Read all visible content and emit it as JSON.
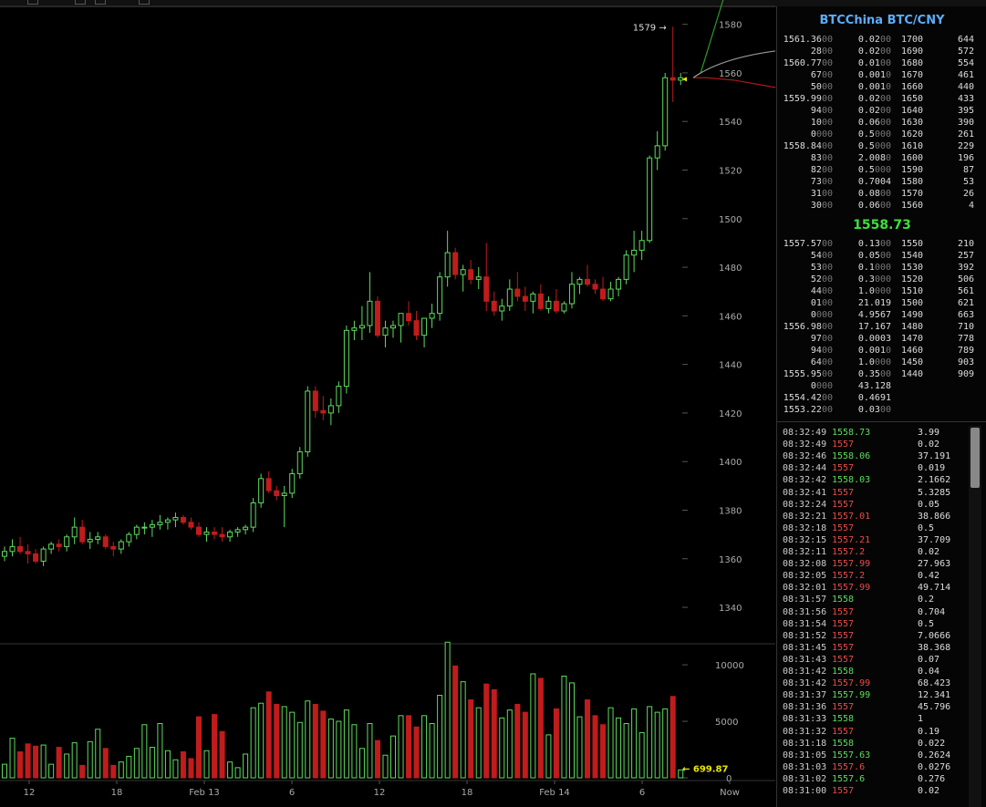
{
  "colors": {
    "up": "#5ddc5d",
    "down": "#c01c1c",
    "mid": "#3de03d",
    "title": "#5aaefc",
    "marker": "#e8e800",
    "grid_text": "#aaaaaa"
  },
  "book": {
    "title": "BTCChina BTC/CNY",
    "mid_price": "1558.73",
    "asks": [
      {
        "price": "1561.36",
        "price_dim": "00",
        "amount": "0.02",
        "amount_dim": "00",
        "level": "1700",
        "cum": "644"
      },
      {
        "price": "28",
        "price_dim": "00",
        "amount": "0.02",
        "amount_dim": "00",
        "level": "1690",
        "cum": "572"
      },
      {
        "price": "1560.77",
        "price_dim": "00",
        "amount": "0.01",
        "amount_dim": "00",
        "level": "1680",
        "cum": "554"
      },
      {
        "price": "67",
        "price_dim": "00",
        "amount": "0.001",
        "amount_dim": "0",
        "level": "1670",
        "cum": "461"
      },
      {
        "price": "50",
        "price_dim": "00",
        "amount": "0.001",
        "amount_dim": "0",
        "level": "1660",
        "cum": "440"
      },
      {
        "price": "1559.99",
        "price_dim": "00",
        "amount": "0.02",
        "amount_dim": "00",
        "level": "1650",
        "cum": "433"
      },
      {
        "price": "94",
        "price_dim": "00",
        "amount": "0.02",
        "amount_dim": "00",
        "level": "1640",
        "cum": "395"
      },
      {
        "price": "10",
        "price_dim": "00",
        "amount": "0.06",
        "amount_dim": "00",
        "level": "1630",
        "cum": "390"
      },
      {
        "price": "0",
        "price_dim": "000",
        "amount": "0.5",
        "amount_dim": "000",
        "level": "1620",
        "cum": "261"
      },
      {
        "price": "1558.84",
        "price_dim": "00",
        "amount": "0.5",
        "amount_dim": "000",
        "level": "1610",
        "cum": "229"
      },
      {
        "price": "83",
        "price_dim": "00",
        "amount": "2.008",
        "amount_dim": "0",
        "level": "1600",
        "cum": "196"
      },
      {
        "price": "82",
        "price_dim": "00",
        "amount": "0.5",
        "amount_dim": "000",
        "level": "1590",
        "cum": "87"
      },
      {
        "price": "73",
        "price_dim": "00",
        "amount": "0.7004",
        "amount_dim": "",
        "level": "1580",
        "cum": "53"
      },
      {
        "price": "31",
        "price_dim": "00",
        "amount": "0.08",
        "amount_dim": "00",
        "level": "1570",
        "cum": "26"
      },
      {
        "price": "30",
        "price_dim": "00",
        "amount": "0.06",
        "amount_dim": "00",
        "level": "1560",
        "cum": "4"
      }
    ],
    "bids": [
      {
        "price": "1557.57",
        "price_dim": "00",
        "amount": "0.13",
        "amount_dim": "00",
        "level": "1550",
        "cum": "210"
      },
      {
        "price": "54",
        "price_dim": "00",
        "amount": "0.05",
        "amount_dim": "00",
        "level": "1540",
        "cum": "257"
      },
      {
        "price": "53",
        "price_dim": "00",
        "amount": "0.1",
        "amount_dim": "000",
        "level": "1530",
        "cum": "392"
      },
      {
        "price": "52",
        "price_dim": "00",
        "amount": "0.3",
        "amount_dim": "000",
        "level": "1520",
        "cum": "506"
      },
      {
        "price": "44",
        "price_dim": "00",
        "amount": "1.0",
        "amount_dim": "000",
        "level": "1510",
        "cum": "561"
      },
      {
        "price": "01",
        "price_dim": "00",
        "amount": "21.019",
        "amount_dim": "",
        "level": "1500",
        "cum": "621"
      },
      {
        "price": "0",
        "price_dim": "000",
        "amount": "4.9567",
        "amount_dim": "",
        "level": "1490",
        "cum": "663"
      },
      {
        "price": "1556.98",
        "price_dim": "00",
        "amount": "17.167",
        "amount_dim": "",
        "level": "1480",
        "cum": "710"
      },
      {
        "price": "97",
        "price_dim": "00",
        "amount": "0.0003",
        "amount_dim": "",
        "level": "1470",
        "cum": "778"
      },
      {
        "price": "94",
        "price_dim": "00",
        "amount": "0.001",
        "amount_dim": "0",
        "level": "1460",
        "cum": "789"
      },
      {
        "price": "64",
        "price_dim": "00",
        "amount": "1.0",
        "amount_dim": "000",
        "level": "1450",
        "cum": "903"
      },
      {
        "price": "1555.95",
        "price_dim": "00",
        "amount": "0.35",
        "amount_dim": "00",
        "level": "1440",
        "cum": "909"
      },
      {
        "price": "0",
        "price_dim": "000",
        "amount": "43.128",
        "amount_dim": "",
        "level": "",
        "cum": ""
      },
      {
        "price": "1554.42",
        "price_dim": "00",
        "amount": "0.4691",
        "amount_dim": "",
        "level": "",
        "cum": ""
      },
      {
        "price": "1553.22",
        "price_dim": "00",
        "amount": "0.03",
        "amount_dim": "00",
        "level": "",
        "cum": ""
      }
    ]
  },
  "trades": [
    {
      "time": "08:32:49",
      "price": "1558.73",
      "amount": "3.99",
      "amount_dim": "",
      "dir": "up"
    },
    {
      "time": "08:32:49",
      "price": "1557",
      "amount": "0.02",
      "amount_dim": "",
      "dir": "dn"
    },
    {
      "time": "08:32:46",
      "price": "1558.06",
      "amount": "37.191",
      "amount_dim": "",
      "dir": "up"
    },
    {
      "time": "08:32:44",
      "price": "1557",
      "amount": "0.019",
      "amount_dim": "",
      "dir": "dn"
    },
    {
      "time": "08:32:42",
      "price": "1558.03",
      "amount": "2.1662",
      "amount_dim": "",
      "dir": "up"
    },
    {
      "time": "08:32:41",
      "price": "1557",
      "amount": "5.3285",
      "amount_dim": "",
      "dir": "dn"
    },
    {
      "time": "08:32:24",
      "price": "1557",
      "amount": "0.05",
      "amount_dim": "",
      "dir": "dn"
    },
    {
      "time": "08:32:21",
      "price": "1557.01",
      "amount": "38.866",
      "amount_dim": "",
      "dir": "dn"
    },
    {
      "time": "08:32:18",
      "price": "1557",
      "amount": "0.5",
      "amount_dim": "",
      "dir": "dn"
    },
    {
      "time": "08:32:15",
      "price": "1557.21",
      "amount": "37.709",
      "amount_dim": "",
      "dir": "dn"
    },
    {
      "time": "08:32:11",
      "price": "1557.2",
      "amount": "0.02",
      "amount_dim": "",
      "dir": "dn"
    },
    {
      "time": "08:32:08",
      "price": "1557.99",
      "amount": "27.963",
      "amount_dim": "",
      "dir": "dn"
    },
    {
      "time": "08:32:05",
      "price": "1557.2",
      "amount": "0.42",
      "amount_dim": "",
      "dir": "dn"
    },
    {
      "time": "08:32:01",
      "price": "1557.99",
      "amount": "49.714",
      "amount_dim": "",
      "dir": "dn"
    },
    {
      "time": "08:31:57",
      "price": "1558",
      "amount": "0.2",
      "amount_dim": "",
      "dir": "up"
    },
    {
      "time": "08:31:56",
      "price": "1557",
      "amount": "0.704",
      "amount_dim": "",
      "dir": "dn"
    },
    {
      "time": "08:31:54",
      "price": "1557",
      "amount": "0.5",
      "amount_dim": "",
      "dir": "dn"
    },
    {
      "time": "08:31:52",
      "price": "1557",
      "amount": "7.0666",
      "amount_dim": "",
      "dir": "dn"
    },
    {
      "time": "08:31:45",
      "price": "1557",
      "amount": "38.368",
      "amount_dim": "",
      "dir": "dn"
    },
    {
      "time": "08:31:43",
      "price": "1557",
      "amount": "0.07",
      "amount_dim": "",
      "dir": "dn"
    },
    {
      "time": "08:31:42",
      "price": "1558",
      "amount": "0.04",
      "amount_dim": "",
      "dir": "up"
    },
    {
      "time": "08:31:42",
      "price": "1557.99",
      "amount": "68.423",
      "amount_dim": "",
      "dir": "dn"
    },
    {
      "time": "08:31:37",
      "price": "1557.99",
      "amount": "12.341",
      "amount_dim": "",
      "dir": "up"
    },
    {
      "time": "08:31:36",
      "price": "1557",
      "amount": "45.796",
      "amount_dim": "",
      "dir": "dn"
    },
    {
      "time": "08:31:33",
      "price": "1558",
      "amount": "1",
      "amount_dim": "",
      "dir": "up"
    },
    {
      "time": "08:31:32",
      "price": "1557",
      "amount": "0.19",
      "amount_dim": "",
      "dir": "dn"
    },
    {
      "time": "08:31:18",
      "price": "1558",
      "amount": "0.022",
      "amount_dim": "",
      "dir": "up"
    },
    {
      "time": "08:31:05",
      "price": "1557.63",
      "amount": "0.2624",
      "amount_dim": "",
      "dir": "up"
    },
    {
      "time": "08:31:03",
      "price": "1557.6",
      "amount": "0.0276",
      "amount_dim": "",
      "dir": "dn"
    },
    {
      "time": "08:31:02",
      "price": "1557.6",
      "amount": "0.276",
      "amount_dim": "",
      "dir": "up"
    },
    {
      "time": "08:31:00",
      "price": "1557",
      "amount": "0.02",
      "amount_dim": "",
      "dir": "dn"
    }
  ],
  "chart_data": {
    "type": "candlestick",
    "price_axis": {
      "ticks": [
        1340,
        1360,
        1380,
        1400,
        1420,
        1440,
        1460,
        1480,
        1500,
        1520,
        1540,
        1560,
        1580
      ],
      "range": [
        1325,
        1587
      ]
    },
    "volume_axis": {
      "ticks": [
        0,
        5000,
        10000
      ],
      "range": [
        0,
        11700
      ]
    },
    "x_labels": [
      "12",
      "18",
      "Feb 13",
      "6",
      "12",
      "18",
      "Feb 14",
      "6",
      "Now"
    ],
    "high_annotation": "1579 →",
    "last_volume_annotation": "← 699.87",
    "candles": [
      [
        1361,
        1365,
        1359,
        1363,
        1200
      ],
      [
        1363,
        1368,
        1361,
        1365,
        3500
      ],
      [
        1365,
        1369,
        1362,
        1363,
        2300
      ],
      [
        1363,
        1366,
        1358,
        1362,
        3000
      ],
      [
        1362,
        1364,
        1358,
        1359,
        2800
      ],
      [
        1359,
        1365,
        1357,
        1364,
        2900
      ],
      [
        1364,
        1367,
        1362,
        1366,
        1200
      ],
      [
        1366,
        1368,
        1363,
        1365,
        2700
      ],
      [
        1365,
        1370,
        1363,
        1369,
        2100
      ],
      [
        1369,
        1377,
        1366,
        1373,
        3100
      ],
      [
        1373,
        1376,
        1366,
        1367,
        1100
      ],
      [
        1367,
        1371,
        1364,
        1368,
        3200
      ],
      [
        1368,
        1371,
        1366,
        1369,
        4300
      ],
      [
        1369,
        1370,
        1364,
        1365,
        2600
      ],
      [
        1365,
        1367,
        1361,
        1364,
        1100
      ],
      [
        1364,
        1368,
        1362,
        1367,
        1400
      ],
      [
        1367,
        1371,
        1365,
        1370,
        1900
      ],
      [
        1370,
        1374,
        1368,
        1373,
        2600
      ],
      [
        1373,
        1375,
        1370,
        1373,
        4700
      ],
      [
        1373,
        1376,
        1369,
        1374,
        2700
      ],
      [
        1374,
        1378,
        1372,
        1375,
        4800
      ],
      [
        1375,
        1377,
        1372,
        1376,
        2400
      ],
      [
        1376,
        1379,
        1373,
        1377,
        1600
      ],
      [
        1377,
        1378,
        1374,
        1375,
        2300
      ],
      [
        1375,
        1377,
        1372,
        1373,
        1700
      ],
      [
        1373,
        1375,
        1369,
        1370,
        5400
      ],
      [
        1370,
        1373,
        1367,
        1371,
        2400
      ],
      [
        1371,
        1373,
        1368,
        1370,
        5600
      ],
      [
        1370,
        1373,
        1367,
        1369,
        4100
      ],
      [
        1369,
        1372,
        1367,
        1371,
        1400
      ],
      [
        1371,
        1373,
        1369,
        1372,
        900
      ],
      [
        1372,
        1374,
        1370,
        1373,
        2100
      ],
      [
        1373,
        1385,
        1371,
        1383,
        6200
      ],
      [
        1383,
        1395,
        1381,
        1393,
        6600
      ],
      [
        1393,
        1396,
        1387,
        1388,
        7600
      ],
      [
        1388,
        1390,
        1384,
        1386,
        6500
      ],
      [
        1386,
        1390,
        1373,
        1387,
        6300
      ],
      [
        1387,
        1397,
        1385,
        1395,
        5800
      ],
      [
        1395,
        1406,
        1393,
        1404,
        4900
      ],
      [
        1404,
        1431,
        1402,
        1429,
        6800
      ],
      [
        1429,
        1431,
        1418,
        1421,
        6500
      ],
      [
        1421,
        1427,
        1417,
        1420,
        5900
      ],
      [
        1420,
        1426,
        1415,
        1423,
        5200
      ],
      [
        1423,
        1433,
        1420,
        1431,
        5000
      ],
      [
        1431,
        1456,
        1428,
        1454,
        6000
      ],
      [
        1454,
        1458,
        1450,
        1455,
        4700
      ],
      [
        1455,
        1464,
        1450,
        1456,
        2600
      ],
      [
        1456,
        1478,
        1453,
        1466,
        4800
      ],
      [
        1466,
        1468,
        1451,
        1452,
        3300
      ],
      [
        1452,
        1458,
        1447,
        1455,
        2000
      ],
      [
        1455,
        1458,
        1451,
        1456,
        3700
      ],
      [
        1456,
        1460,
        1449,
        1461,
        5500
      ],
      [
        1461,
        1466,
        1456,
        1458,
        5500
      ],
      [
        1458,
        1462,
        1450,
        1452,
        4500
      ],
      [
        1452,
        1459,
        1447,
        1459,
        5500
      ],
      [
        1459,
        1465,
        1455,
        1461,
        4800
      ],
      [
        1461,
        1478,
        1458,
        1476,
        7300
      ],
      [
        1476,
        1495,
        1472,
        1486,
        12000
      ],
      [
        1486,
        1488,
        1475,
        1477,
        9900
      ],
      [
        1477,
        1481,
        1470,
        1479,
        8500
      ],
      [
        1479,
        1483,
        1473,
        1475,
        6900
      ],
      [
        1475,
        1480,
        1471,
        1476,
        6200
      ],
      [
        1476,
        1490,
        1462,
        1466,
        8300
      ],
      [
        1466,
        1470,
        1460,
        1462,
        7800
      ],
      [
        1462,
        1467,
        1458,
        1464,
        5300
      ],
      [
        1464,
        1475,
        1462,
        1471,
        6000
      ],
      [
        1471,
        1478,
        1466,
        1468,
        6500
      ],
      [
        1468,
        1472,
        1462,
        1466,
        5800
      ],
      [
        1466,
        1470,
        1461,
        1469,
        9200
      ],
      [
        1469,
        1473,
        1462,
        1463,
        8800
      ],
      [
        1463,
        1468,
        1461,
        1466,
        3800
      ],
      [
        1466,
        1471,
        1461,
        1462,
        6100
      ],
      [
        1462,
        1466,
        1461,
        1465,
        9000
      ],
      [
        1465,
        1478,
        1463,
        1473,
        8400
      ],
      [
        1473,
        1476,
        1469,
        1475,
        5400
      ],
      [
        1475,
        1481,
        1472,
        1473,
        6900
      ],
      [
        1473,
        1475,
        1469,
        1471,
        5500
      ],
      [
        1471,
        1476,
        1466,
        1467,
        4700
      ],
      [
        1467,
        1474,
        1466,
        1471,
        6200
      ],
      [
        1471,
        1476,
        1468,
        1475,
        5300
      ],
      [
        1475,
        1487,
        1473,
        1485,
        4800
      ],
      [
        1485,
        1495,
        1478,
        1487,
        6100
      ],
      [
        1487,
        1495,
        1483,
        1491,
        4000
      ],
      [
        1491,
        1526,
        1490,
        1525,
        6300
      ],
      [
        1525,
        1536,
        1520,
        1530,
        5800
      ],
      [
        1530,
        1560,
        1528,
        1558,
        6100
      ],
      [
        1558,
        1579,
        1548,
        1557,
        7200
      ],
      [
        1557,
        1560,
        1555,
        1558,
        700
      ]
    ],
    "depth": {
      "ask_levels": [
        1560,
        1570,
        1580,
        1590,
        1600,
        1610,
        1620,
        1630,
        1640,
        1650,
        1660,
        1670,
        1680,
        1690,
        1700
      ],
      "bid_levels": [
        1550,
        1540,
        1530,
        1520,
        1510,
        1500,
        1490,
        1480,
        1470,
        1460,
        1450,
        1440
      ]
    }
  }
}
